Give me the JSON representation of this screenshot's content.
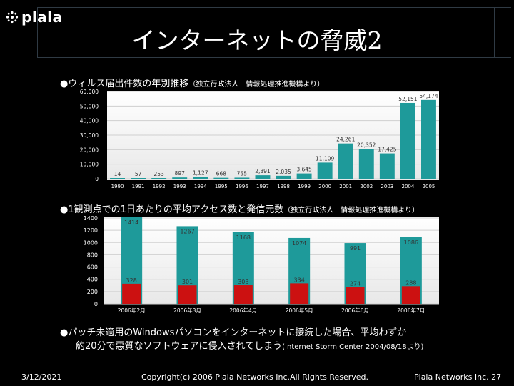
{
  "logo": {
    "text": "plala"
  },
  "title": "インターネットの脅威2",
  "chart1": {
    "bullet": "●",
    "heading": "ウィルス届出件数の年別推移",
    "source": "（独立行政法人　情報処理推進機構より）"
  },
  "chart2": {
    "bullet": "●",
    "heading": "1観測点での1日あたりの平均アクセス数と発信元数",
    "source": "（独立行政法人　情報処理推進機構より）"
  },
  "note": {
    "bullet": "●",
    "line1": "パッチ未適用のWindowsパソコンをインターネットに接続した場合、平均わずか",
    "line2": "約20分で悪質なソフトウェアに侵入されてしまう",
    "source": "(Internet Storm Center 2004/08/18より)"
  },
  "footer": {
    "date": "3/12/2021",
    "copyright": "Copyright(c) 2006 Plala Networks Inc.All Rights Reserved.",
    "company_page": "Plala Networks Inc.  27"
  },
  "colors": {
    "teal": "#1e9a9a",
    "red": "#cc1111",
    "background": "#000000"
  },
  "chart_data": [
    {
      "type": "bar",
      "title": "ウィルス届出件数の年別推移",
      "categories": [
        "1990",
        "1991",
        "1992",
        "1993",
        "1994",
        "1995",
        "1996",
        "1997",
        "1998",
        "1999",
        "2000",
        "2001",
        "2002",
        "2003",
        "2004",
        "2005"
      ],
      "values": [
        14,
        57,
        253,
        897,
        1127,
        668,
        755,
        2391,
        2035,
        3645,
        11109,
        24261,
        20352,
        17425,
        52151,
        54174
      ],
      "labels": [
        "14",
        "57",
        "253",
        "897",
        "1,127",
        "668",
        "755",
        "2,391",
        "2,035",
        "3,645",
        "11,109",
        "24,261",
        "20,352",
        "17,425",
        "52,151",
        "54,174"
      ],
      "ylim": [
        0,
        60000
      ],
      "yticks": [
        0,
        10000,
        20000,
        30000,
        40000,
        50000,
        60000
      ],
      "yticklabels": [
        "0",
        "10,000",
        "20,000",
        "30,000",
        "40,000",
        "50,000",
        "60,000"
      ],
      "xlabel": "",
      "ylabel": ""
    },
    {
      "type": "bar",
      "title": "1観測点での1日あたりの平均アクセス数と発信元数",
      "categories": [
        "2006年2月",
        "2006年3月",
        "2006年4月",
        "2006年5月",
        "2006年6月",
        "2006年7月"
      ],
      "series": [
        {
          "name": "平均アクセス数",
          "values": [
            1414,
            1267,
            1168,
            1074,
            991,
            1086
          ]
        },
        {
          "name": "発信元数",
          "values": [
            328,
            301,
            303,
            334,
            274,
            288
          ]
        }
      ],
      "ylim": [
        0,
        1400
      ],
      "yticks": [
        0,
        200,
        400,
        600,
        800,
        1000,
        1200,
        1400
      ],
      "xlabel": "",
      "ylabel": ""
    }
  ]
}
